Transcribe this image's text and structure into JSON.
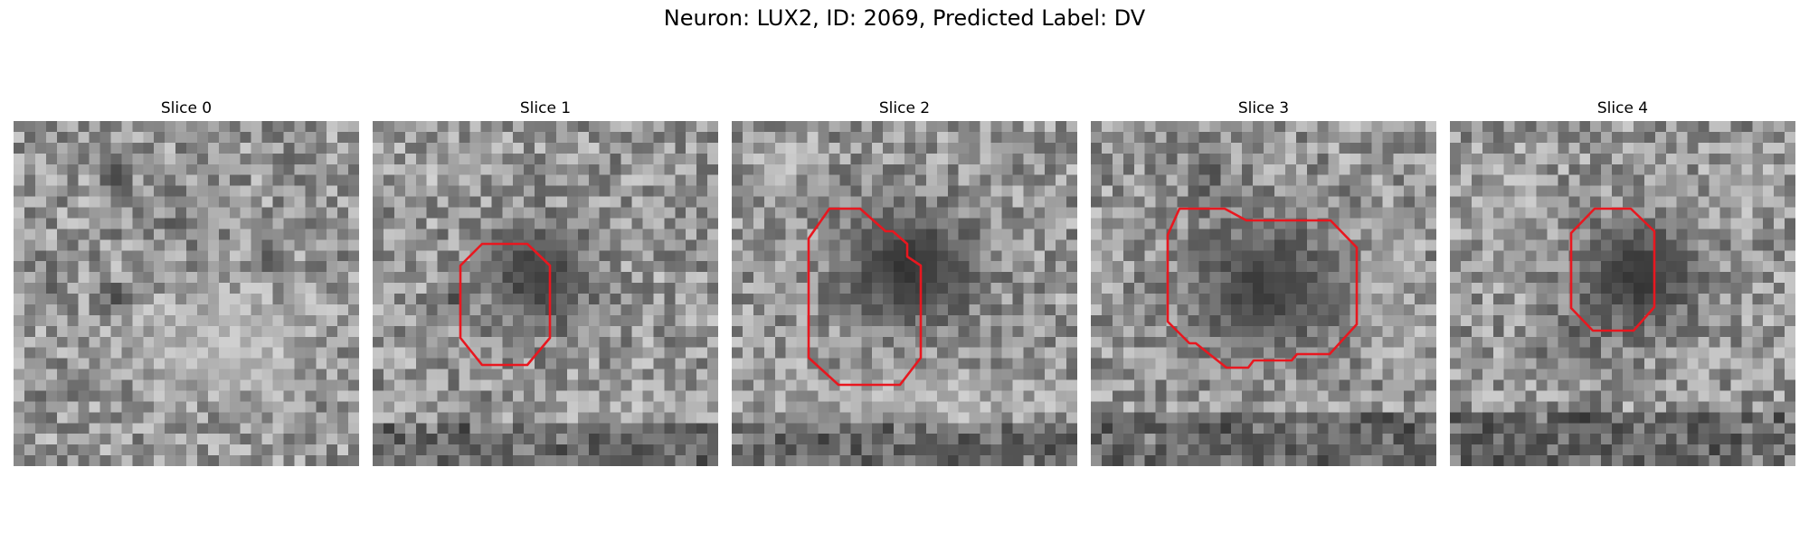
{
  "figure": {
    "title": "Neuron: LUX2, ID: 2069, Predicted Label: DV"
  },
  "slices": [
    {
      "title": "Slice 0"
    },
    {
      "title": "Slice 1"
    },
    {
      "title": "Slice 2"
    },
    {
      "title": "Slice 3"
    },
    {
      "title": "Slice 4"
    }
  ],
  "colors": {
    "contour": "#e8171f",
    "background": "#ffffff"
  }
}
